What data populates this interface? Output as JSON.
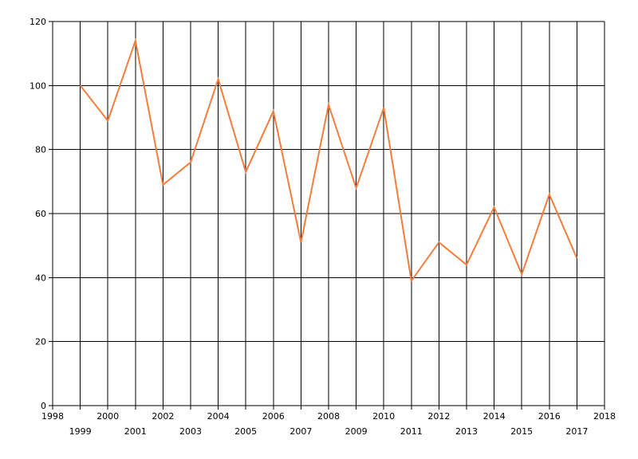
{
  "chart_data": {
    "type": "line",
    "title": "",
    "xlabel": "",
    "ylabel": "",
    "xlim": [
      1998,
      2018
    ],
    "ylim": [
      0,
      120
    ],
    "y_ticks": [
      0,
      20,
      40,
      60,
      80,
      100,
      120
    ],
    "x_ticks": [
      1998,
      1999,
      2000,
      2001,
      2002,
      2003,
      2004,
      2005,
      2006,
      2007,
      2008,
      2009,
      2010,
      2011,
      2012,
      2013,
      2014,
      2015,
      2016,
      2017,
      2018
    ],
    "grid": true,
    "legend": "none",
    "series": [
      {
        "color": "#f47c3c",
        "x": [
          1999,
          2000,
          2001,
          2002,
          2003,
          2004,
          2005,
          2006,
          2007,
          2008,
          2009,
          2010,
          2011,
          2012,
          2013,
          2014,
          2015,
          2016,
          2017
        ],
        "values": [
          100,
          89,
          114,
          69,
          76,
          102,
          73,
          92,
          51,
          94,
          68,
          93,
          39,
          51,
          44,
          62,
          41,
          66,
          46
        ]
      }
    ]
  }
}
